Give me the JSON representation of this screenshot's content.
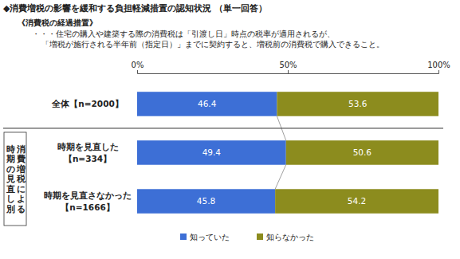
{
  "chart_data": {
    "type": "bar",
    "orientation": "horizontal",
    "stacked": true,
    "data_labels": true,
    "title": "◆消費増税の影響を緩和する負担軽減措置の認知状況 （単一回答）",
    "subtitle": "《消費税の経過措置》",
    "annotations": [
      "・・・住宅の購入や建築する際の消費税は「引渡し日」時点の税率が適用されるが、",
      "「増税が施行される半年前（指定日）」までに契約すると、増税前の消費税で購入できること。"
    ],
    "y_group_label": "消費増税による\n時期の見直し別",
    "categories": [
      "全体【n=2000】",
      "時期を見直した\n【n=334】",
      "時期を見直さなかった\n【n=1666】"
    ],
    "series": [
      {
        "name": "知っていた",
        "color": "#3d6fd6",
        "values": [
          46.4,
          49.4,
          45.8
        ]
      },
      {
        "name": "知らなかった",
        "color": "#8c8c1e",
        "values": [
          53.6,
          50.6,
          54.2
        ]
      }
    ],
    "xlim": [
      0,
      100
    ],
    "xticks": [
      {
        "value": 0,
        "label": "0%"
      },
      {
        "value": 50,
        "label": "50%"
      },
      {
        "value": 100,
        "label": "100%"
      }
    ],
    "grid": false,
    "legend": "bottom"
  }
}
